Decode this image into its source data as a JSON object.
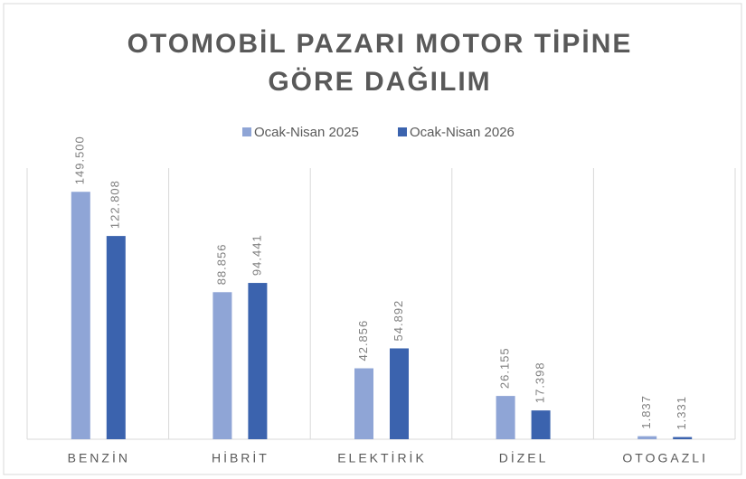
{
  "chart_data": {
    "type": "bar",
    "title": [
      "OTOMOBİL PAZARI MOTOR TİPİNE",
      "GÖRE DAĞILIM"
    ],
    "categories": [
      "BENZİN",
      "HİBRİT",
      "ELEKTİRİK",
      "DİZEL",
      "OTOGAZLI"
    ],
    "series": [
      {
        "name": "Ocak-Nisan 2025",
        "color": "#8fa5d6",
        "values": [
          149500,
          88856,
          42856,
          26155,
          1837
        ],
        "value_labels": [
          "149.500",
          "88.856",
          "42.856",
          "26.155",
          "1.837"
        ]
      },
      {
        "name": "Ocak-Nisan 2026",
        "color": "#3b63ae",
        "values": [
          122808,
          94441,
          54892,
          17398,
          1331
        ],
        "value_labels": [
          "122.808",
          "94.441",
          "54.892",
          "17.398",
          "1.331"
        ]
      }
    ],
    "ylim": [
      0,
      160000
    ],
    "legend": "top"
  }
}
